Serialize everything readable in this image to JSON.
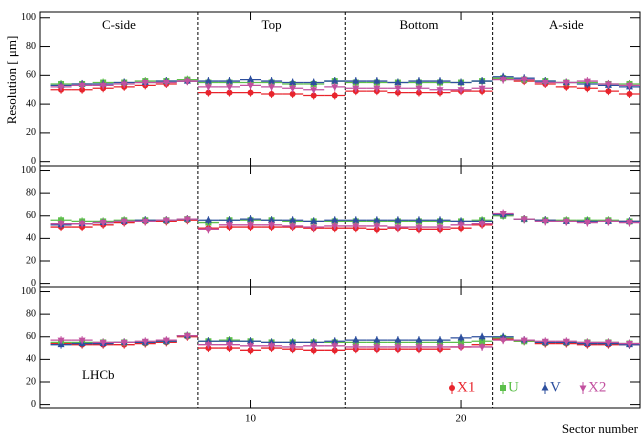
{
  "chart_data": {
    "type": "step",
    "ylabel": "Resolution [ μm]",
    "xlabel": "Sector number",
    "annotation": "LHCb",
    "regions": [
      "C-side",
      "Top",
      "Bottom",
      "A-side"
    ],
    "dividers": [
      7.5,
      14.5,
      21.5
    ],
    "x": [
      1,
      2,
      3,
      4,
      5,
      6,
      7,
      8,
      9,
      10,
      11,
      12,
      13,
      14,
      15,
      16,
      17,
      18,
      19,
      20,
      21,
      22,
      23,
      24,
      25,
      26,
      27,
      28
    ],
    "xlim": [
      0,
      28.5
    ],
    "xticks": [
      10,
      20
    ],
    "ylim": [
      -3,
      104
    ],
    "yticks": [
      0,
      20,
      40,
      60,
      80,
      100
    ],
    "legend": "lower right",
    "series": [
      {
        "name": "X1",
        "color": "#e8242c"
      },
      {
        "name": "U",
        "color": "#5cbf4a"
      },
      {
        "name": "V",
        "color": "#2d4f9e"
      },
      {
        "name": "X2",
        "color": "#c2509f"
      }
    ],
    "panels": [
      {
        "values": [
          [
            50,
            50,
            51,
            52,
            53,
            54,
            56,
            48,
            48,
            48,
            47,
            47,
            46,
            46,
            49,
            49,
            48,
            48,
            48,
            49,
            49,
            58,
            56,
            54,
            52,
            51,
            49,
            47
          ],
          [
            54,
            54,
            55,
            55,
            56,
            56,
            57,
            55,
            55,
            55,
            55,
            54,
            54,
            56,
            55,
            55,
            55,
            55,
            55,
            55,
            56,
            58,
            57,
            56,
            55,
            55,
            54,
            54
          ],
          [
            53,
            54,
            54,
            55,
            55,
            56,
            56,
            56,
            56,
            57,
            56,
            55,
            55,
            56,
            56,
            56,
            55,
            56,
            56,
            55,
            56,
            59,
            58,
            56,
            55,
            54,
            53,
            52
          ],
          [
            52,
            53,
            53,
            54,
            55,
            55,
            56,
            52,
            52,
            53,
            52,
            51,
            50,
            52,
            51,
            51,
            51,
            51,
            50,
            50,
            51,
            57,
            57,
            55,
            55,
            56,
            54,
            53
          ]
        ]
      },
      {
        "values": [
          [
            50,
            50,
            52,
            54,
            55,
            55,
            56,
            49,
            50,
            50,
            50,
            50,
            49,
            49,
            49,
            48,
            49,
            48,
            48,
            49,
            52,
            61,
            57,
            56,
            55,
            55,
            55,
            55
          ],
          [
            56,
            55,
            55,
            56,
            56,
            56,
            57,
            54,
            56,
            56,
            56,
            55,
            55,
            55,
            55,
            55,
            55,
            55,
            55,
            55,
            56,
            60,
            57,
            56,
            56,
            56,
            56,
            55
          ],
          [
            52,
            53,
            54,
            55,
            56,
            56,
            57,
            56,
            56,
            57,
            56,
            56,
            55,
            56,
            56,
            56,
            56,
            56,
            56,
            55,
            55,
            61,
            57,
            56,
            55,
            55,
            55,
            55
          ],
          [
            53,
            53,
            54,
            55,
            55,
            56,
            57,
            48,
            52,
            52,
            52,
            51,
            50,
            51,
            51,
            51,
            50,
            50,
            50,
            52,
            53,
            62,
            57,
            55,
            55,
            54,
            55,
            54
          ]
        ]
      },
      {
        "values": [
          [
            54,
            53,
            53,
            53,
            54,
            55,
            60,
            50,
            50,
            48,
            50,
            49,
            48,
            48,
            49,
            49,
            49,
            49,
            49,
            51,
            53,
            58,
            56,
            54,
            54,
            53,
            53,
            53
          ],
          [
            55,
            55,
            55,
            55,
            55,
            56,
            61,
            56,
            57,
            56,
            55,
            55,
            55,
            55,
            55,
            55,
            55,
            55,
            55,
            55,
            56,
            59,
            56,
            55,
            55,
            55,
            55,
            54
          ],
          [
            53,
            54,
            54,
            55,
            55,
            56,
            61,
            56,
            56,
            56,
            55,
            55,
            55,
            56,
            57,
            57,
            57,
            57,
            57,
            59,
            60,
            60,
            57,
            55,
            55,
            54,
            54,
            53
          ],
          [
            57,
            57,
            55,
            55,
            56,
            57,
            61,
            53,
            53,
            52,
            52,
            51,
            52,
            52,
            51,
            51,
            51,
            51,
            51,
            51,
            51,
            57,
            57,
            56,
            56,
            55,
            55,
            54
          ]
        ]
      }
    ]
  }
}
